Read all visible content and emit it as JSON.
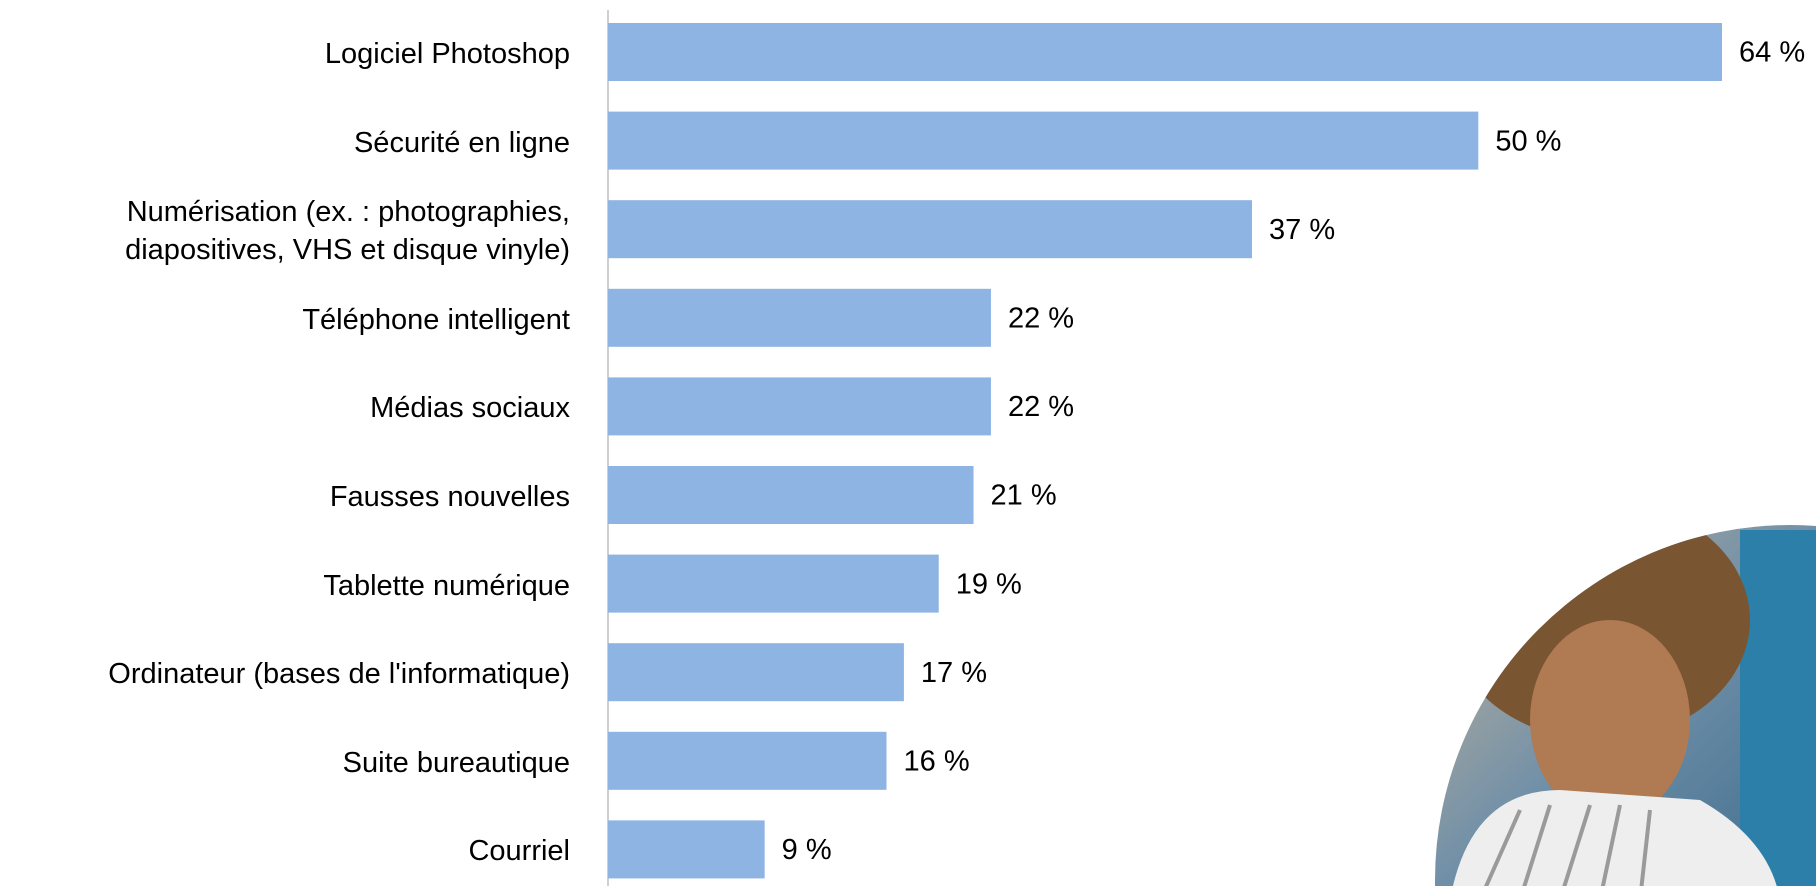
{
  "chart_data": {
    "type": "bar",
    "orientation": "horizontal",
    "categories": [
      "Logiciel Photoshop",
      "Sécurité en ligne",
      "Numérisation (ex. : photographies, diapositives, VHS et disque vinyle)",
      "Téléphone intelligent",
      "Médias sociaux",
      "Fausses nouvelles",
      "Tablette numérique",
      "Ordinateur (bases de l'informatique)",
      "Suite bureautique",
      "Courriel"
    ],
    "values": [
      64,
      50,
      37,
      22,
      22,
      21,
      19,
      17,
      16,
      9
    ],
    "value_labels": [
      "64 %",
      "50 %",
      "37 %",
      "22 %",
      "22 %",
      "21 %",
      "19 %",
      "17 %",
      "16 %",
      "9 %"
    ],
    "color": "#8db4e2"
  }
}
